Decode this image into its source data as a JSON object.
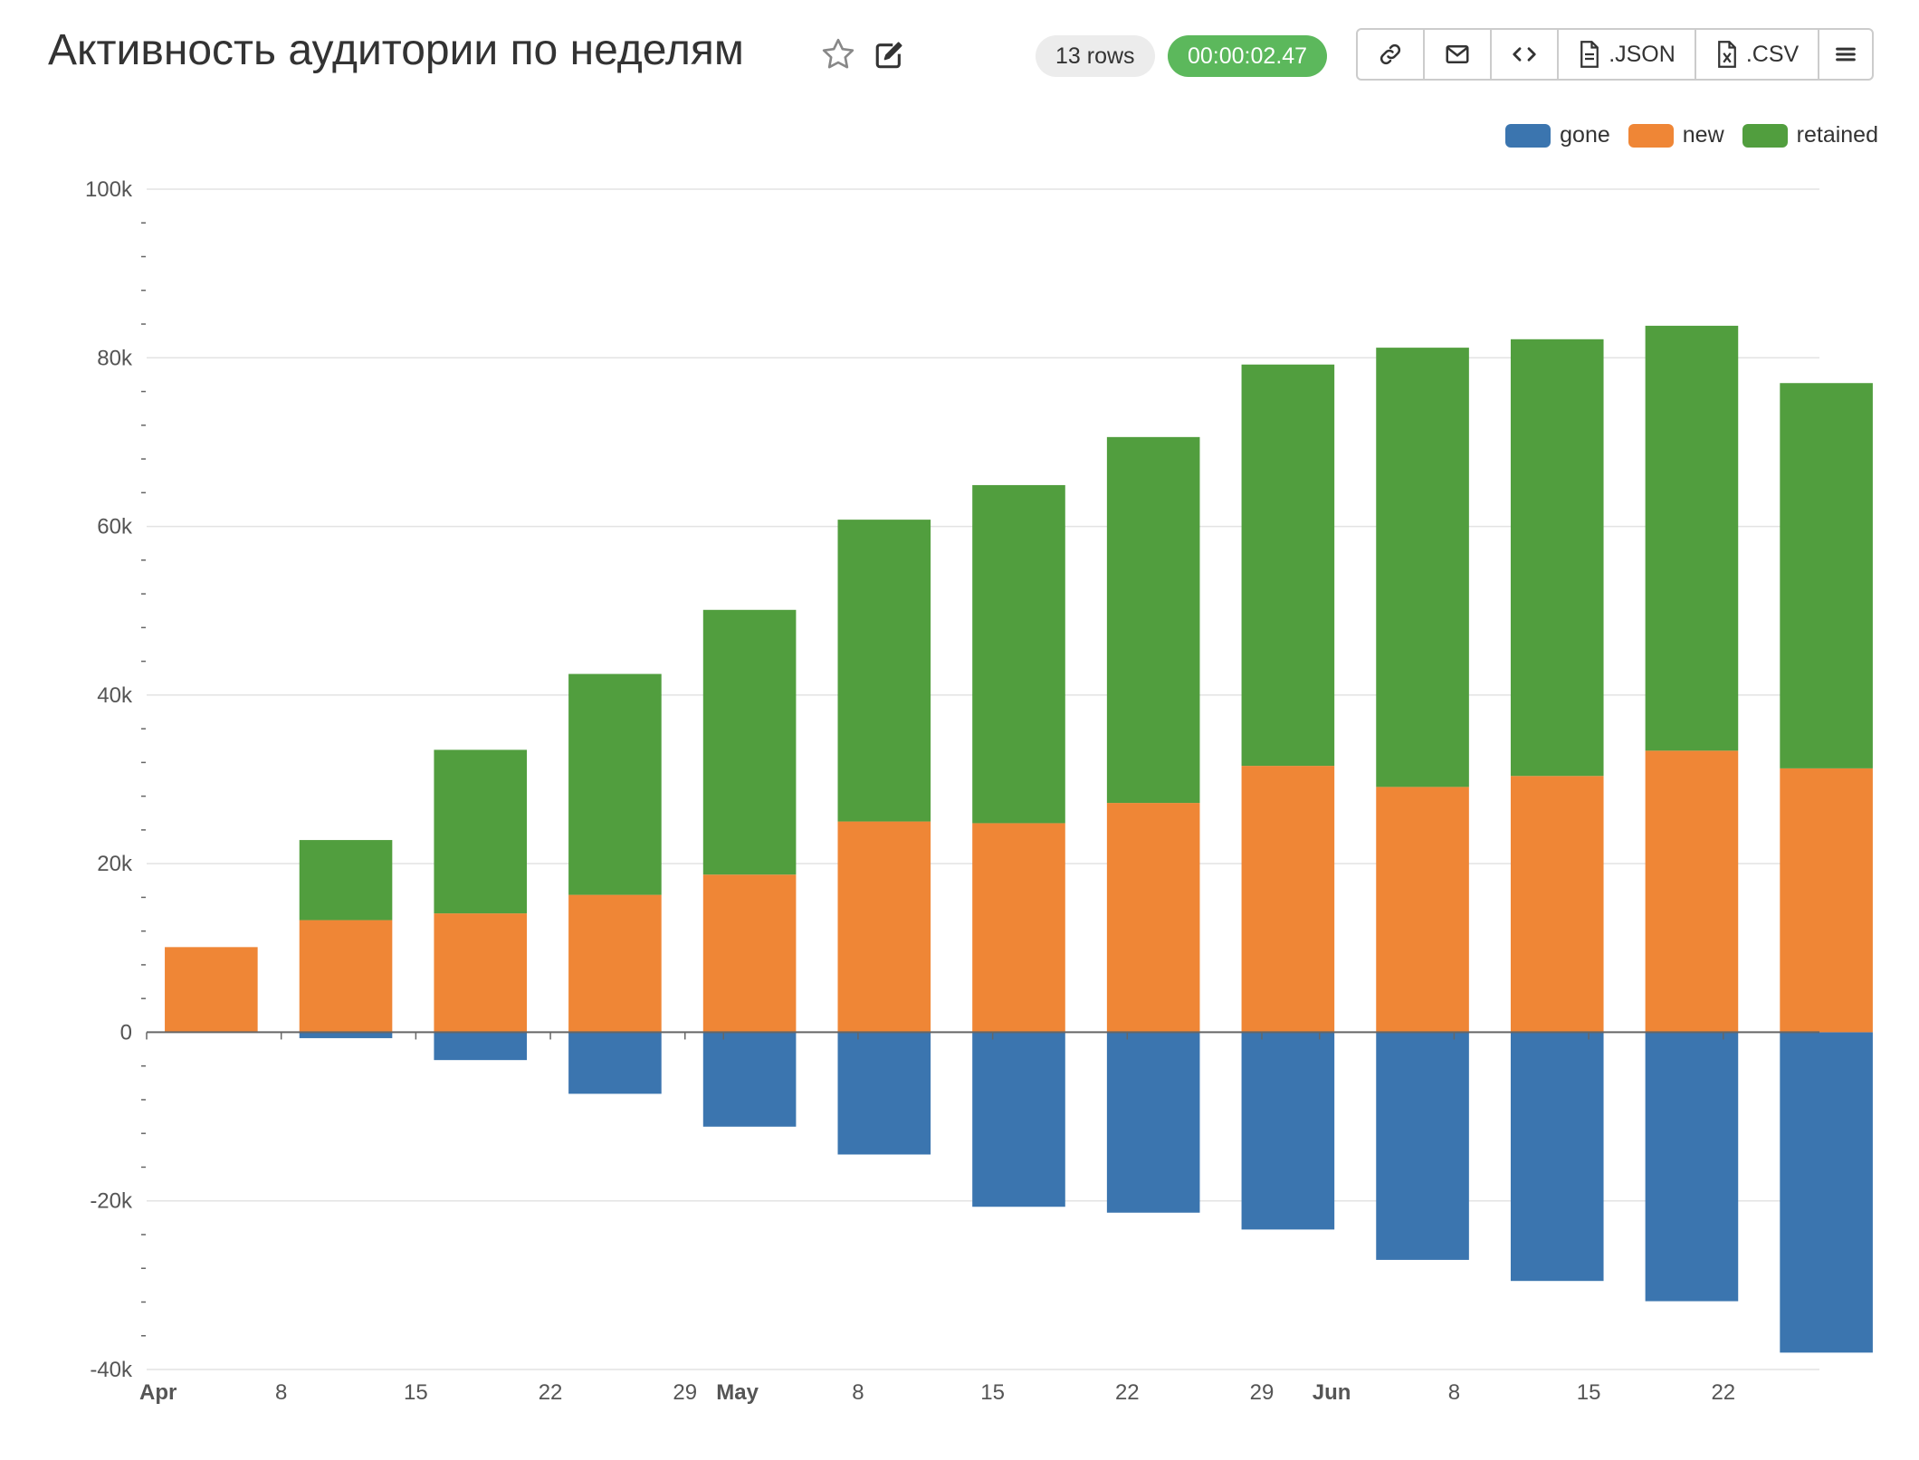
{
  "header": {
    "title": "Активность аудитории по неделям",
    "rows_badge": "13 rows",
    "time_badge": "00:00:02.47",
    "toolbar": {
      "link_icon": "link-icon",
      "email_icon": "envelope-icon",
      "embed_icon": "code-icon",
      "json_label": ".JSON",
      "csv_label": ".CSV",
      "menu_icon": "hamburger-menu-icon"
    }
  },
  "legend": [
    {
      "name": "gone",
      "color": "#3b75af"
    },
    {
      "name": "new",
      "color": "#ef8636"
    },
    {
      "name": "retained",
      "color": "#519e3e"
    }
  ],
  "chart_data": {
    "type": "bar",
    "stacked": true,
    "x": [
      "2020-04-01",
      "2020-04-08",
      "2020-04-15",
      "2020-04-22",
      "2020-04-29",
      "2020-05-06",
      "2020-05-13",
      "2020-05-20",
      "2020-05-27",
      "2020-06-03",
      "2020-06-10",
      "2020-06-17",
      "2020-06-24"
    ],
    "series": [
      {
        "name": "gone",
        "color": "#3b75af",
        "values": [
          0,
          -700,
          -3300,
          -7300,
          -11200,
          -14500,
          -20700,
          -21400,
          -23400,
          -27000,
          -29500,
          -31900,
          -38000
        ]
      },
      {
        "name": "new",
        "color": "#ef8636",
        "values": [
          10100,
          13300,
          14100,
          16300,
          18700,
          25000,
          24800,
          27200,
          31600,
          29100,
          30400,
          33400,
          31300
        ]
      },
      {
        "name": "retained",
        "color": "#519e3e",
        "values": [
          0,
          9500,
          19400,
          26200,
          31400,
          35800,
          40100,
          43400,
          47600,
          52100,
          51800,
          50400,
          45700
        ]
      }
    ],
    "ylim": [
      -40000,
      100000
    ],
    "y_ticks": [
      {
        "value": 100000,
        "label": "100k"
      },
      {
        "value": 80000,
        "label": "80k"
      },
      {
        "value": 60000,
        "label": "60k"
      },
      {
        "value": 40000,
        "label": "40k"
      },
      {
        "value": 20000,
        "label": "20k"
      },
      {
        "value": 0,
        "label": "0"
      },
      {
        "value": -20000,
        "label": "-20k"
      },
      {
        "value": -40000,
        "label": "-40k"
      }
    ],
    "xlim": [
      "2020-04-01",
      "2020-06-27"
    ],
    "x_ticks": [
      {
        "date": "2020-04-01",
        "label": "Apr",
        "bold": true
      },
      {
        "date": "2020-04-08",
        "label": "8"
      },
      {
        "date": "2020-04-15",
        "label": "15"
      },
      {
        "date": "2020-04-22",
        "label": "22"
      },
      {
        "date": "2020-04-29",
        "label": "29"
      },
      {
        "date": "2020-05-01",
        "label": "May",
        "bold": true
      },
      {
        "date": "2020-05-08",
        "label": "8"
      },
      {
        "date": "2020-05-15",
        "label": "15"
      },
      {
        "date": "2020-05-22",
        "label": "22"
      },
      {
        "date": "2020-05-29",
        "label": "29"
      },
      {
        "date": "2020-06-01",
        "label": "Jun",
        "bold": true
      },
      {
        "date": "2020-06-08",
        "label": "8"
      },
      {
        "date": "2020-06-15",
        "label": "15"
      },
      {
        "date": "2020-06-22",
        "label": "22"
      }
    ],
    "grid": true,
    "legend_position": "top-right"
  }
}
